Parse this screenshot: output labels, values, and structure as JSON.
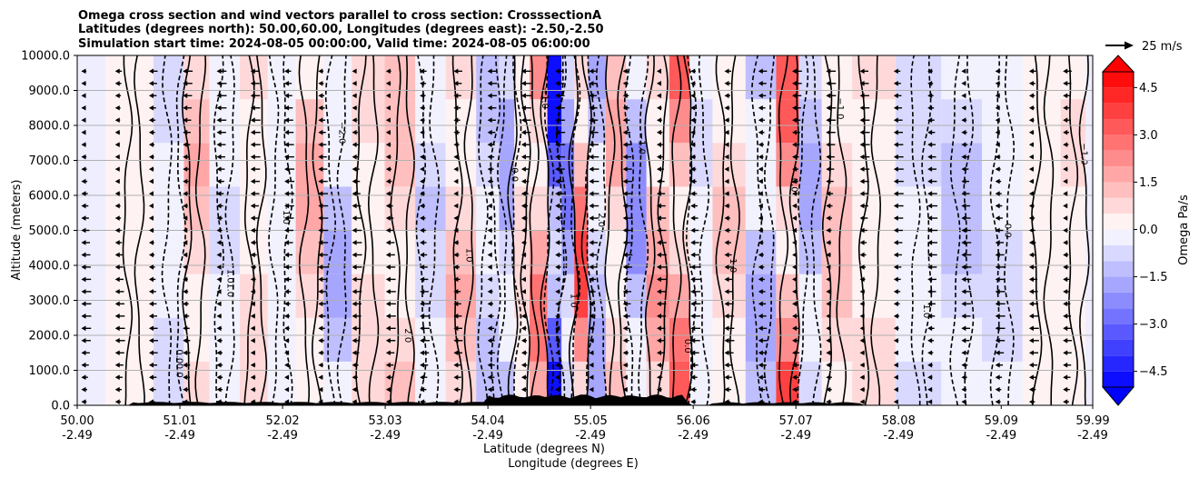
{
  "chart_data": {
    "type": "heatmap",
    "title_lines": [
      "Omega cross section and wind vectors parallel to cross section: CrosssectionA",
      "Latitudes (degrees north): 50.00,60.00, Longitudes (degrees east): -2.50,-2.50",
      "Simulation start time: 2024-08-05 00:00:00, Valid time: 2024-08-05 06:00:00"
    ],
    "ylabel": "Altitude (meters)",
    "xlabel_lat": "Latitude (degrees N)",
    "xlabel_lon": "Longitude (degrees E)",
    "ylim": [
      0,
      10000
    ],
    "y_ticks": [
      "0.0",
      "1000.0",
      "2000.0",
      "3000.0",
      "4000.0",
      "5000.0",
      "6000.0",
      "7000.0",
      "8000.0",
      "9000.0",
      "10000.0"
    ],
    "y_tick_values": [
      0,
      1000,
      2000,
      3000,
      4000,
      5000,
      6000,
      7000,
      8000,
      9000,
      10000
    ],
    "xlim": [
      50.0,
      59.99
    ],
    "x_tick_values": [
      50.0,
      51.01,
      52.02,
      53.03,
      54.04,
      55.05,
      56.06,
      57.07,
      58.08,
      59.09,
      59.99
    ],
    "x_ticks_lat": [
      "50.00",
      "51.01",
      "52.02",
      "53.03",
      "54.04",
      "55.05",
      "56.06",
      "57.07",
      "58.08",
      "59.09",
      "59.99"
    ],
    "x_ticks_lon": [
      "-2.49",
      "-2.49",
      "-2.49",
      "-2.49",
      "-2.49",
      "-2.49",
      "-2.49",
      "-2.49",
      "-2.49",
      "-2.49",
      "-2.49"
    ],
    "grid": "horizontal",
    "colorbar": {
      "label": "Omega Pa/s",
      "cmap": "bwr",
      "range": [
        -5.0,
        5.0
      ],
      "extend": "both",
      "ticks": [
        "4.5",
        "3.0",
        "1.5",
        "0.0",
        "−1.5",
        "−3.0",
        "−4.5"
      ],
      "tick_values": [
        4.5,
        3.0,
        1.5,
        0.0,
        -1.5,
        -3.0,
        -4.5
      ]
    },
    "quiver_key": {
      "label": "25 m/s",
      "speed": 25
    },
    "contour_labels": [
      "0.0",
      "1.0",
      "−1.0",
      "−2.0",
      "2.0",
      "1.0",
      "0.0",
      "−1.0",
      "1.0",
      "2.0",
      "−1.0",
      "0.0",
      "1.0",
      "0.0",
      "−1.0",
      "1.0",
      "0.0",
      "−1.0",
      "0.0",
      "1.0"
    ],
    "omega_columns": [
      {
        "lat": 50.55,
        "value": 0.4
      },
      {
        "lat": 50.95,
        "value": -0.8
      },
      {
        "lat": 51.15,
        "value": 1.6
      },
      {
        "lat": 51.45,
        "value": -0.6
      },
      {
        "lat": 51.75,
        "value": 0.9
      },
      {
        "lat": 52.0,
        "value": -0.5
      },
      {
        "lat": 52.3,
        "value": 1.8
      },
      {
        "lat": 52.55,
        "value": -1.6
      },
      {
        "lat": 52.85,
        "value": 0.9
      },
      {
        "lat": 53.2,
        "value": 1.5
      },
      {
        "lat": 53.45,
        "value": -1.1
      },
      {
        "lat": 53.8,
        "value": 1.7
      },
      {
        "lat": 54.05,
        "value": -1.4
      },
      {
        "lat": 54.25,
        "value": -2.0
      },
      {
        "lat": 54.35,
        "value": 0.8
      },
      {
        "lat": 54.55,
        "value": 2.8
      },
      {
        "lat": 54.7,
        "value": -5.0
      },
      {
        "lat": 54.83,
        "value": -3.0
      },
      {
        "lat": 54.95,
        "value": 4.0
      },
      {
        "lat": 55.1,
        "value": -2.0
      },
      {
        "lat": 55.3,
        "value": 1.8
      },
      {
        "lat": 55.5,
        "value": -2.5
      },
      {
        "lat": 55.7,
        "value": 2.2
      },
      {
        "lat": 55.95,
        "value": 3.2
      },
      {
        "lat": 56.1,
        "value": -0.6
      },
      {
        "lat": 56.4,
        "value": 1.2
      },
      {
        "lat": 56.75,
        "value": -1.6
      },
      {
        "lat": 57.0,
        "value": 3.6
      },
      {
        "lat": 57.2,
        "value": -2.0
      },
      {
        "lat": 57.45,
        "value": 1.4
      },
      {
        "lat": 57.8,
        "value": 0.6
      },
      {
        "lat": 58.3,
        "value": -0.7
      },
      {
        "lat": 58.7,
        "value": -1.4
      },
      {
        "lat": 59.1,
        "value": -0.9
      },
      {
        "lat": 59.5,
        "value": 0.5
      },
      {
        "lat": 59.85,
        "value": 0.7
      }
    ]
  }
}
